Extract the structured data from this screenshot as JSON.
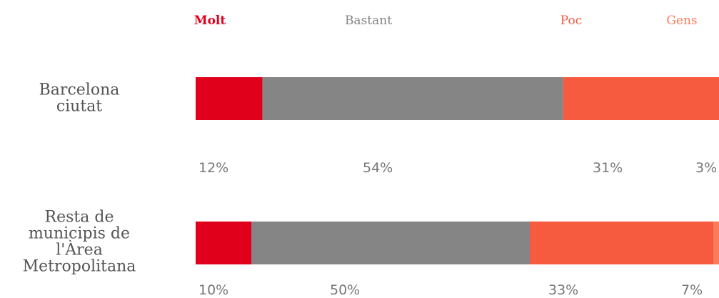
{
  "chart_data": {
    "type": "bar",
    "stacked": true,
    "orientation": "horizontal",
    "categories": [
      [
        "Barcelona",
        "ciutat"
      ],
      [
        "Resta de",
        "municipis de",
        "l'Àrea",
        "Metropolitana"
      ]
    ],
    "series": [
      {
        "name": "Molt",
        "color": "#e0001b",
        "values": [
          12,
          10
        ],
        "labels": [
          "12%",
          "10%"
        ]
      },
      {
        "name": "Bastant",
        "color": "#858585",
        "values": [
          54,
          50
        ],
        "labels": [
          "54%",
          "50%"
        ]
      },
      {
        "name": "Poc",
        "color": "#f65a3f",
        "values": [
          31,
          33
        ],
        "labels": [
          "31%",
          "33%"
        ]
      },
      {
        "name": "Gens",
        "color": "#fb7a5c",
        "values": [
          3,
          7
        ],
        "labels": [
          "3%",
          "7%"
        ]
      }
    ],
    "legend_position": "top",
    "grid": false,
    "xlim": [
      0,
      100
    ],
    "value_label_color": "#777777",
    "category_label_color": "#555555"
  }
}
